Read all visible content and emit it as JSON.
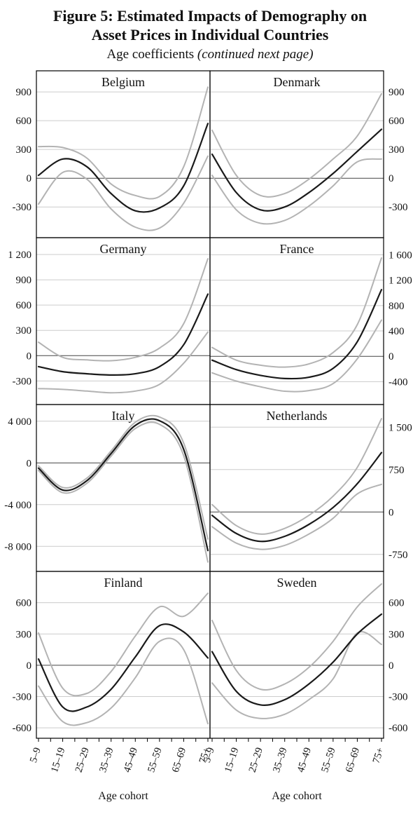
{
  "title": {
    "line1": "Figure 5: Estimated Impacts of Demography on",
    "line2": "Asset Prices in Individual Countries"
  },
  "subtitle": {
    "normal": "Age coefficients ",
    "italic": "(continued next page)"
  },
  "x_axis": {
    "label": "Age cohort",
    "categories": [
      "5–9",
      "15–19",
      "25–29",
      "35–39",
      "45–49",
      "55–59",
      "65–69",
      "75+"
    ]
  },
  "colors": {
    "estimate_line": "#1a1a1a",
    "confidence_band": "#b3b3b3",
    "grid": "#cccccc",
    "zero_line": "#444444",
    "border": "#000000"
  },
  "chart_data": [
    {
      "type": "line",
      "country": "Belgium",
      "axis_side": "left",
      "ylim": [
        -620,
        1120
      ],
      "ticks": [
        {
          "value": 900,
          "label": "900"
        },
        {
          "value": 600,
          "label": "600"
        },
        {
          "value": 300,
          "label": "300"
        },
        {
          "value": 0,
          "label": "0"
        },
        {
          "value": -300,
          "label": "-300"
        }
      ],
      "series": [
        {
          "name": "estimate",
          "values": [
            30,
            200,
            120,
            -160,
            -340,
            -310,
            -80,
            570
          ]
        },
        {
          "name": "upper_band",
          "values": [
            330,
            320,
            210,
            -60,
            -180,
            -190,
            120,
            950
          ]
        },
        {
          "name": "lower_band",
          "values": [
            -270,
            60,
            -10,
            -320,
            -510,
            -520,
            -260,
            230
          ]
        }
      ]
    },
    {
      "type": "line",
      "country": "Denmark",
      "axis_side": "right",
      "ylim": [
        -620,
        1120
      ],
      "ticks": [
        {
          "value": 900,
          "label": "900"
        },
        {
          "value": 600,
          "label": "600"
        },
        {
          "value": 300,
          "label": "300"
        },
        {
          "value": 0,
          "label": "0"
        },
        {
          "value": -300,
          "label": "-300"
        }
      ],
      "series": [
        {
          "name": "estimate",
          "values": [
            250,
            -150,
            -330,
            -300,
            -150,
            50,
            280,
            510
          ]
        },
        {
          "name": "upper_band",
          "values": [
            500,
            30,
            -180,
            -160,
            -10,
            200,
            440,
            880
          ]
        },
        {
          "name": "lower_band",
          "values": [
            30,
            -330,
            -470,
            -440,
            -290,
            -80,
            170,
            200
          ]
        }
      ]
    },
    {
      "type": "line",
      "country": "Germany",
      "axis_side": "left",
      "ylim": [
        -580,
        1400
      ],
      "ticks": [
        {
          "value": 1200,
          "label": "1 200"
        },
        {
          "value": 900,
          "label": "900"
        },
        {
          "value": 600,
          "label": "600"
        },
        {
          "value": 300,
          "label": "300"
        },
        {
          "value": 0,
          "label": "0"
        },
        {
          "value": -300,
          "label": "-300"
        }
      ],
      "series": [
        {
          "name": "estimate",
          "values": [
            -130,
            -190,
            -215,
            -230,
            -215,
            -130,
            130,
            730
          ]
        },
        {
          "name": "upper_band",
          "values": [
            160,
            -20,
            -50,
            -60,
            -20,
            90,
            380,
            1150
          ]
        },
        {
          "name": "lower_band",
          "values": [
            -390,
            -400,
            -420,
            -440,
            -420,
            -340,
            -90,
            280
          ]
        }
      ]
    },
    {
      "type": "line",
      "country": "France",
      "axis_side": "right",
      "ylim": [
        -760,
        1870
      ],
      "ticks": [
        {
          "value": 1600,
          "label": "1 600"
        },
        {
          "value": 1200,
          "label": "1 200"
        },
        {
          "value": 800,
          "label": "800"
        },
        {
          "value": 400,
          "label": "400"
        },
        {
          "value": 0,
          "label": "0"
        },
        {
          "value": -400,
          "label": "-400"
        }
      ],
      "series": [
        {
          "name": "estimate",
          "values": [
            -60,
            -210,
            -300,
            -350,
            -330,
            -190,
            230,
            1050
          ]
        },
        {
          "name": "upper_band",
          "values": [
            140,
            -60,
            -140,
            -170,
            -120,
            60,
            500,
            1550
          ]
        },
        {
          "name": "lower_band",
          "values": [
            -260,
            -390,
            -480,
            -550,
            -540,
            -430,
            -40,
            570
          ]
        }
      ]
    },
    {
      "type": "line",
      "country": "Italy",
      "axis_side": "left",
      "ylim": [
        -10400,
        5600
      ],
      "ticks": [
        {
          "value": 4000,
          "label": "4 000"
        },
        {
          "value": 0,
          "label": "0"
        },
        {
          "value": -4000,
          "label": "-4 000"
        },
        {
          "value": -8000,
          "label": "-8 000"
        }
      ],
      "series": [
        {
          "name": "estimate",
          "values": [
            -500,
            -2600,
            -1700,
            900,
            3600,
            4050,
            1300,
            -8400
          ]
        },
        {
          "name": "upper_band",
          "values": [
            -280,
            -2350,
            -1450,
            1150,
            3900,
            4400,
            1900,
            -7300
          ]
        },
        {
          "name": "lower_band",
          "values": [
            -720,
            -2850,
            -1950,
            650,
            3300,
            3700,
            700,
            -9500
          ]
        }
      ]
    },
    {
      "type": "line",
      "country": "Netherlands",
      "axis_side": "right",
      "ylim": [
        -1050,
        1900
      ],
      "ticks": [
        {
          "value": 1500,
          "label": "1 500"
        },
        {
          "value": 750,
          "label": "750"
        },
        {
          "value": 0,
          "label": "0"
        },
        {
          "value": -750,
          "label": "-750"
        }
      ],
      "series": [
        {
          "name": "estimate",
          "values": [
            -60,
            -380,
            -520,
            -430,
            -220,
            80,
            500,
            1050
          ]
        },
        {
          "name": "upper_band",
          "values": [
            130,
            -240,
            -390,
            -290,
            -60,
            280,
            790,
            1650
          ]
        },
        {
          "name": "lower_band",
          "values": [
            -260,
            -550,
            -660,
            -590,
            -390,
            -110,
            320,
            490
          ]
        }
      ]
    },
    {
      "type": "line",
      "country": "Finland",
      "axis_side": "left",
      "ylim": [
        -700,
        900
      ],
      "ticks": [
        {
          "value": 600,
          "label": "600"
        },
        {
          "value": 300,
          "label": "300"
        },
        {
          "value": 0,
          "label": "0"
        },
        {
          "value": -300,
          "label": "-300"
        },
        {
          "value": -600,
          "label": "-600"
        }
      ],
      "series": [
        {
          "name": "estimate",
          "values": [
            60,
            -400,
            -400,
            -230,
            80,
            380,
            320,
            70
          ]
        },
        {
          "name": "upper_band",
          "values": [
            310,
            -220,
            -270,
            -60,
            280,
            560,
            470,
            690
          ]
        },
        {
          "name": "lower_band",
          "values": [
            -200,
            -540,
            -550,
            -410,
            -120,
            230,
            150,
            -560
          ]
        }
      ]
    },
    {
      "type": "line",
      "country": "Sweden",
      "axis_side": "right",
      "ylim": [
        -700,
        900
      ],
      "ticks": [
        {
          "value": 600,
          "label": "600"
        },
        {
          "value": 300,
          "label": "300"
        },
        {
          "value": 0,
          "label": "0"
        },
        {
          "value": -300,
          "label": "-300"
        },
        {
          "value": -600,
          "label": "-600"
        }
      ],
      "series": [
        {
          "name": "estimate",
          "values": [
            130,
            -250,
            -380,
            -330,
            -180,
            30,
            300,
            490
          ]
        },
        {
          "name": "upper_band",
          "values": [
            430,
            -50,
            -230,
            -180,
            -20,
            230,
            560,
            780
          ]
        },
        {
          "name": "lower_band",
          "values": [
            -170,
            -430,
            -510,
            -470,
            -330,
            -130,
            310,
            200
          ]
        }
      ]
    }
  ]
}
